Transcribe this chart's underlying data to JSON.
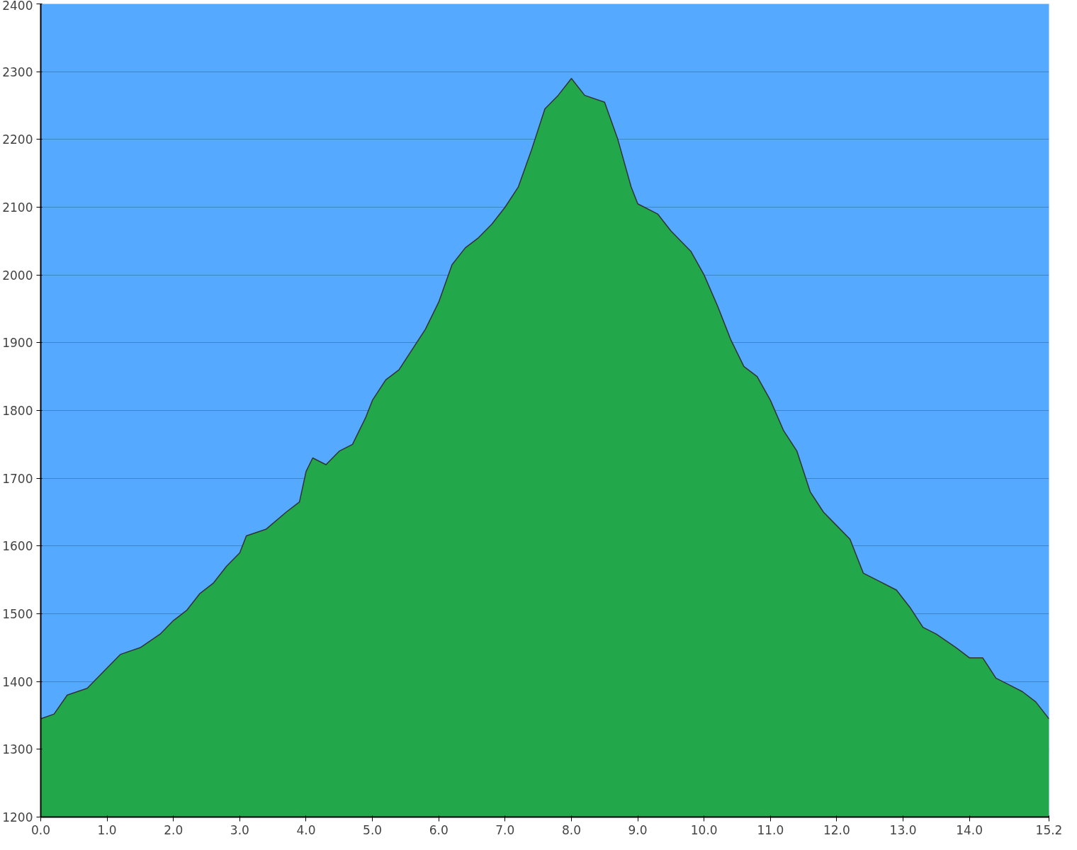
{
  "chart_data": {
    "type": "area",
    "x": [
      0.0,
      0.2,
      0.4,
      0.7,
      1.0,
      1.2,
      1.5,
      1.8,
      2.0,
      2.2,
      2.4,
      2.6,
      2.8,
      3.0,
      3.1,
      3.4,
      3.7,
      3.9,
      4.0,
      4.1,
      4.3,
      4.5,
      4.7,
      4.9,
      5.0,
      5.2,
      5.4,
      5.6,
      5.8,
      6.0,
      6.2,
      6.4,
      6.6,
      6.8,
      7.0,
      7.2,
      7.4,
      7.6,
      7.8,
      8.0,
      8.2,
      8.5,
      8.7,
      8.9,
      9.0,
      9.3,
      9.5,
      9.8,
      10.0,
      10.2,
      10.4,
      10.6,
      10.8,
      11.0,
      11.2,
      11.4,
      11.6,
      11.8,
      12.0,
      12.2,
      12.4,
      12.6,
      12.9,
      13.1,
      13.3,
      13.5,
      13.8,
      14.0,
      14.2,
      14.4,
      14.6,
      14.8,
      15.0,
      15.2
    ],
    "series": [
      {
        "color": "#22a84a",
        "values": [
          1345,
          1352,
          1380,
          1390,
          1420,
          1440,
          1450,
          1470,
          1490,
          1505,
          1530,
          1545,
          1570,
          1590,
          1615,
          1625,
          1650,
          1665,
          1710,
          1730,
          1720,
          1740,
          1750,
          1790,
          1815,
          1845,
          1860,
          1890,
          1920,
          1960,
          2015,
          2040,
          2055,
          2075,
          2100,
          2130,
          2185,
          2245,
          2265,
          2290,
          2265,
          2255,
          2200,
          2130,
          2105,
          2090,
          2065,
          2035,
          2000,
          1955,
          1905,
          1865,
          1850,
          1815,
          1770,
          1740,
          1680,
          1650,
          1630,
          1610,
          1560,
          1550,
          1535,
          1510,
          1480,
          1470,
          1450,
          1435,
          1435,
          1405,
          1395,
          1385,
          1370,
          1345
        ]
      }
    ],
    "xlim": [
      0,
      15.2
    ],
    "xticks": [
      {
        "value": 0,
        "label": "0.0"
      },
      {
        "value": 1,
        "label": "1.0"
      },
      {
        "value": 2,
        "label": "2.0"
      },
      {
        "value": 3,
        "label": "3.0"
      },
      {
        "value": 4,
        "label": "4.0"
      },
      {
        "value": 5,
        "label": "5.0"
      },
      {
        "value": 6,
        "label": "6.0"
      },
      {
        "value": 7,
        "label": "7.0"
      },
      {
        "value": 8,
        "label": "8.0"
      },
      {
        "value": 9,
        "label": "9.0"
      },
      {
        "value": 10,
        "label": "10.0"
      },
      {
        "value": 11,
        "label": "11.0"
      },
      {
        "value": 12,
        "label": "12.0"
      },
      {
        "value": 13,
        "label": "13.0"
      },
      {
        "value": 14,
        "label": "14.0"
      },
      {
        "value": 15.2,
        "label": "15.2"
      }
    ],
    "ylim": [
      1200,
      2400
    ],
    "yticks": [
      1200,
      1300,
      1400,
      1500,
      1600,
      1700,
      1800,
      1900,
      2000,
      2100,
      2200,
      2300,
      2400
    ],
    "grid": "y"
  }
}
